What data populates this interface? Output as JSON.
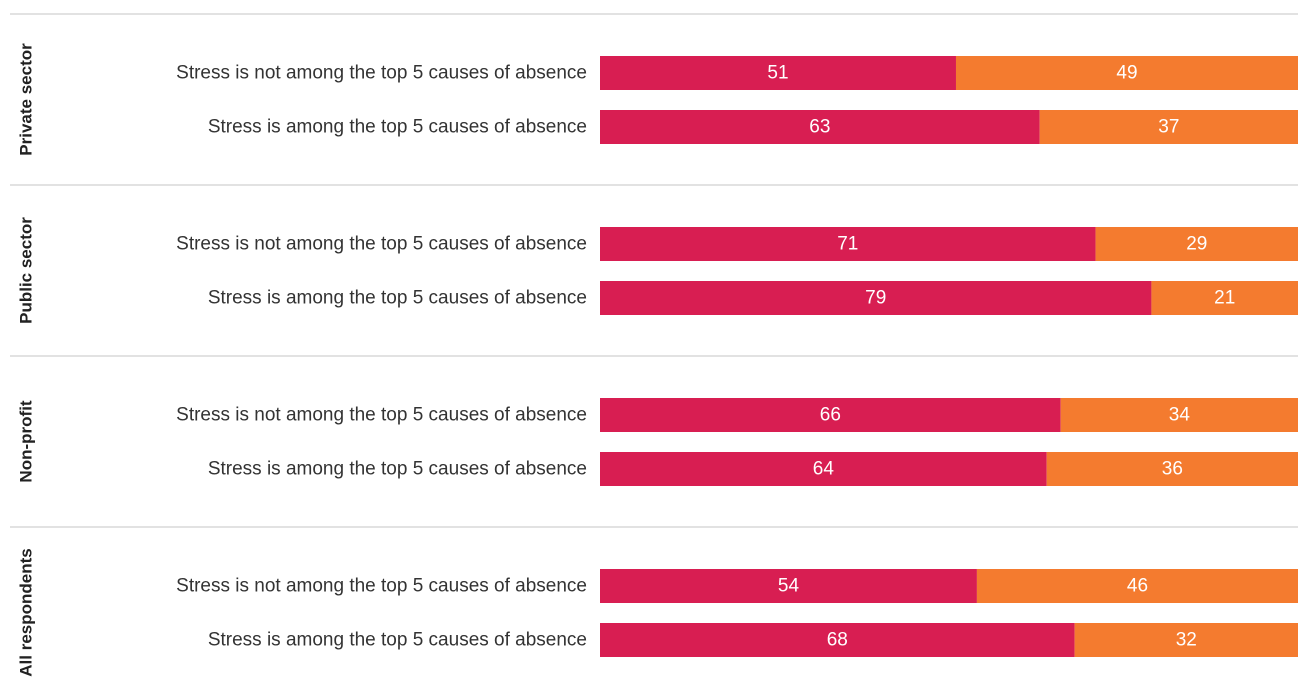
{
  "chart_data": {
    "type": "bar",
    "orientation": "horizontal",
    "stacked": true,
    "normalized": true,
    "xlim": [
      0,
      100
    ],
    "series_colors": [
      "#d81e52",
      "#f47b2f"
    ],
    "groups": [
      {
        "label": "Private sector",
        "rows": [
          {
            "label": "Stress is not among the top 5 causes of absence",
            "values": [
              51,
              49
            ]
          },
          {
            "label": "Stress is among the top 5 causes of absence",
            "values": [
              63,
              37
            ]
          }
        ]
      },
      {
        "label": "Public sector",
        "rows": [
          {
            "label": "Stress is not among the top 5 causes of absence",
            "values": [
              71,
              29
            ]
          },
          {
            "label": "Stress is among the top 5 causes of absence",
            "values": [
              79,
              21
            ]
          }
        ]
      },
      {
        "label": "Non-profit",
        "rows": [
          {
            "label": "Stress is not among the top 5 causes of absence",
            "values": [
              66,
              34
            ]
          },
          {
            "label": "Stress is among the top 5 causes of absence",
            "values": [
              64,
              36
            ]
          }
        ]
      },
      {
        "label": "All respondents",
        "rows": [
          {
            "label": "Stress is not among the top 5 causes of absence",
            "values": [
              54,
              46
            ]
          },
          {
            "label": "Stress is among the top 5 causes of absence",
            "values": [
              68,
              32
            ]
          }
        ]
      }
    ]
  }
}
